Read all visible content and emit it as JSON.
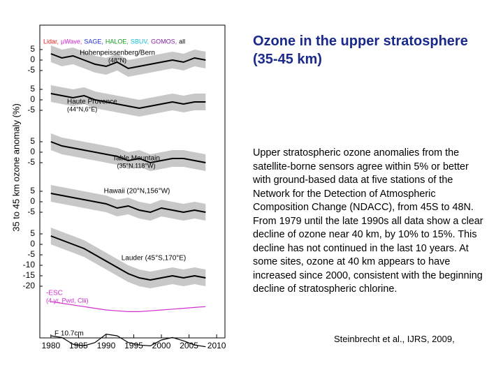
{
  "title": "Ozone in the upper stratosphere (35-45 km)",
  "body": "Upper stratospheric ozone anomalies from the satellite-borne sensors agree within 5% or better with ground-based data at five stations of the Network for the Detection of Atmospheric Composition Change (NDACC), from 45S to 48N. From 1979 until the late 1990s all data show a clear decline of ozone near 40 km, by 10% to 15%. This decline has not continued in the last 10 years. At some sites, ozone at 40 km appears to have increased since 2000, consistent with the beginning decline of stratospheric chlorine.",
  "citation": "Steinbrecht et al., IJRS, 2009,",
  "figure": {
    "y_label": "35 to 45 km ozone anomaly (%)",
    "xlim": [
      1978,
      2011.5
    ],
    "xticks": [
      1980,
      1985,
      1990,
      1995,
      2000,
      2005,
      2010
    ],
    "legend": [
      {
        "name": "Lidar,",
        "color": "#e02020"
      },
      {
        "name": "µWave,",
        "color": "#d020d0"
      },
      {
        "name": "SAGE,",
        "color": "#2030e0"
      },
      {
        "name": "HALOE,",
        "color": "#10a020"
      },
      {
        "name": "SBUV,",
        "color": "#10c0d0"
      },
      {
        "name": "GOMOS,",
        "color": "#8020a0"
      },
      {
        "name": "all",
        "color": "#000000"
      }
    ],
    "x": [
      1980,
      1982,
      1984,
      1986,
      1988,
      1990,
      1992,
      1994,
      1996,
      1998,
      2000,
      2002,
      2004,
      2006,
      2008
    ],
    "panels": [
      {
        "label": "Hohenpeissenberg/Bern",
        "sublabel": "(48°N)",
        "yticks": [
          5,
          0,
          -5
        ],
        "color": "#000000",
        "values": [
          3,
          1,
          2,
          0,
          -2,
          -3,
          -1,
          -4,
          -3,
          -2,
          -1,
          0,
          -1,
          1,
          0
        ]
      },
      {
        "label": "Haute Provence",
        "sublabel": "(44°N,6°E)",
        "yticks": [
          5,
          0,
          -5
        ],
        "color": "#000000",
        "values": [
          3,
          2,
          1,
          2,
          0,
          -1,
          -2,
          -3,
          -4,
          -3,
          -2,
          -1,
          -2,
          -1,
          -1
        ]
      },
      {
        "label": "Table Mountain",
        "sublabel": "(35°N,118°W)",
        "yticks": [
          5,
          0,
          -5
        ],
        "color": "#000000",
        "values": [
          5,
          3,
          2,
          1,
          0,
          -1,
          -2,
          -4,
          -3,
          -5,
          -4,
          -3,
          -3,
          -4,
          -5
        ]
      },
      {
        "label": "Hawaii (20°N,156°W)",
        "yticks": [
          5,
          0,
          -5
        ],
        "color": "#000000",
        "values": [
          4,
          3,
          2,
          1,
          0,
          -1,
          -3,
          -2,
          -4,
          -5,
          -3,
          -4,
          -5,
          -4,
          -5
        ]
      },
      {
        "label": "Lauder (45°S,170°E)",
        "yticks": [
          5,
          0,
          -5,
          -10,
          -15,
          -20
        ],
        "color": "#000000",
        "values": [
          4,
          2,
          0,
          -2,
          -5,
          -8,
          -11,
          -14,
          -16,
          -17,
          -16,
          -15,
          -16,
          -15,
          -16
        ]
      },
      {
        "label": "-ESC",
        "sublabel": "(4 yr, Pwd, Clii)",
        "color": "#d030d0",
        "values": [
          0,
          -2,
          -4,
          -6,
          -8,
          -10,
          -11,
          -12,
          -12,
          -11,
          -10,
          -9,
          -8,
          -7,
          -6
        ]
      },
      {
        "label": "F 10.7cm",
        "color": "#000000",
        "values": [
          200,
          180,
          100,
          80,
          120,
          220,
          200,
          120,
          90,
          80,
          150,
          180,
          140,
          90,
          70
        ]
      }
    ]
  }
}
